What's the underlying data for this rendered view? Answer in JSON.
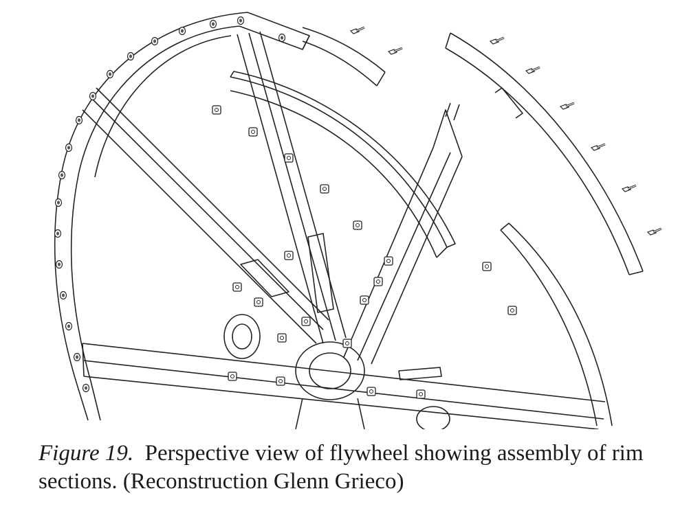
{
  "figure": {
    "image": "exploded perspective line drawing of a spoked flywheel with detached rim sections and bolts"
  },
  "caption": {
    "label": "Figure 19.",
    "text": "Perspective view of flywheel showing assembly of rim sections. (Reconstruction Glenn Grieco)"
  }
}
